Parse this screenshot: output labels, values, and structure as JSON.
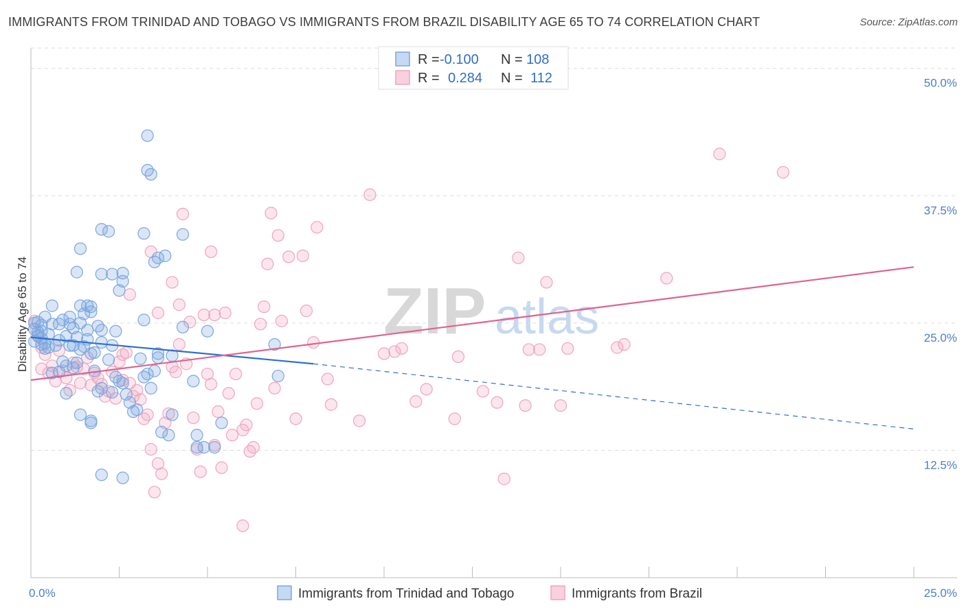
{
  "title": "IMMIGRANTS FROM TRINIDAD AND TOBAGO VS IMMIGRANTS FROM BRAZIL DISABILITY AGE 65 TO 74 CORRELATION CHART",
  "source": "Source: ZipAtlas.com",
  "watermark": {
    "zip": "ZIP",
    "atlas": "atlas"
  },
  "colors": {
    "blue": "#7aa7e0",
    "blue_line": "#2f6fd0",
    "pink": "#f0a4bd",
    "pink_line": "#e0628e"
  },
  "legend": {
    "rows": [
      {
        "r_label": "R =",
        "r_value": "-0.100",
        "n_label": "N =",
        "n_value": "108"
      },
      {
        "r_label": "R =",
        "r_value": "0.284",
        "n_label": "N =",
        "n_value": "112"
      }
    ]
  },
  "bottom_legend": [
    "Immigrants from Trinidad and Tobago",
    "Immigrants from Brazil"
  ],
  "chart_data": {
    "type": "scatter",
    "title": "IMMIGRANTS FROM TRINIDAD AND TOBAGO VS IMMIGRANTS FROM BRAZIL DISABILITY AGE 65 TO 74 CORRELATION CHART",
    "xlabel": "",
    "ylabel": "Disability Age 65 to 74",
    "xlim": [
      0,
      25
    ],
    "ylim": [
      0,
      52
    ],
    "x_tick_labels": [
      "0.0%",
      "25.0%"
    ],
    "y_ticks": [
      12.5,
      25.0,
      37.5,
      50.0
    ],
    "y_tick_labels": [
      "12.5%",
      "25.0%",
      "37.5%",
      "50.0%"
    ],
    "series": [
      {
        "name": "Immigrants from Trinidad and Tobago",
        "color": "#7aa7e0",
        "R": -0.1,
        "N": 108,
        "trend": {
          "x0": 0,
          "y0": 23.6,
          "x1": 8.0,
          "y1": 21.0,
          "dash_to_x": 25,
          "dash_to_y": 14.6
        },
        "points": [
          [
            0.1,
            23.2
          ],
          [
            0.2,
            24.1
          ],
          [
            0.3,
            23.5
          ],
          [
            0.4,
            23.0
          ],
          [
            0.5,
            22.6
          ],
          [
            0.1,
            24.4
          ],
          [
            0.2,
            25.1
          ],
          [
            0.3,
            24.8
          ],
          [
            0.5,
            23.9
          ],
          [
            0.6,
            24.9
          ],
          [
            0.7,
            22.8
          ],
          [
            0.8,
            23.3
          ],
          [
            0.9,
            25.3
          ],
          [
            1.0,
            23.7
          ],
          [
            1.1,
            22.8
          ],
          [
            1.2,
            24.5
          ],
          [
            1.3,
            23.6
          ],
          [
            1.4,
            22.4
          ],
          [
            1.5,
            25.9
          ],
          [
            1.6,
            24.3
          ],
          [
            1.7,
            26.1
          ],
          [
            1.8,
            22.1
          ],
          [
            1.9,
            24.7
          ],
          [
            2.0,
            23.1
          ],
          [
            0.4,
            25.6
          ],
          [
            0.6,
            26.7
          ],
          [
            1.1,
            24.9
          ],
          [
            1.4,
            25.0
          ],
          [
            0.9,
            21.2
          ],
          [
            1.0,
            20.8
          ],
          [
            1.2,
            20.6
          ],
          [
            1.3,
            21.1
          ],
          [
            1.5,
            22.7
          ],
          [
            1.6,
            23.4
          ],
          [
            1.7,
            22.0
          ],
          [
            1.8,
            20.3
          ],
          [
            2.3,
            22.8
          ],
          [
            2.2,
            21.4
          ],
          [
            2.4,
            19.7
          ],
          [
            2.5,
            19.3
          ],
          [
            2.6,
            19.1
          ],
          [
            2.0,
            18.6
          ],
          [
            1.9,
            18.3
          ],
          [
            2.3,
            18.2
          ],
          [
            2.8,
            17.2
          ],
          [
            2.9,
            16.3
          ],
          [
            3.0,
            16.5
          ],
          [
            2.7,
            18.0
          ],
          [
            3.2,
            19.7
          ],
          [
            3.3,
            20.0
          ],
          [
            3.6,
            21.6
          ],
          [
            3.5,
            20.3
          ],
          [
            1.3,
            30.0
          ],
          [
            1.4,
            32.3
          ],
          [
            2.0,
            34.2
          ],
          [
            2.2,
            34.0
          ],
          [
            2.0,
            29.8
          ],
          [
            2.3,
            29.8
          ],
          [
            2.5,
            28.2
          ],
          [
            2.6,
            29.1
          ],
          [
            2.6,
            29.9
          ],
          [
            3.2,
            25.3
          ],
          [
            3.2,
            33.8
          ],
          [
            3.5,
            31.0
          ],
          [
            3.6,
            31.4
          ],
          [
            3.8,
            31.6
          ],
          [
            3.3,
            40.0
          ],
          [
            3.4,
            39.6
          ],
          [
            3.3,
            43.4
          ],
          [
            1.4,
            26.7
          ],
          [
            1.7,
            26.6
          ],
          [
            2.0,
            24.3
          ],
          [
            1.6,
            26.7
          ],
          [
            2.4,
            24.2
          ],
          [
            3.1,
            21.5
          ],
          [
            4.0,
            16.0
          ],
          [
            3.7,
            14.3
          ],
          [
            3.9,
            14.0
          ],
          [
            4.6,
            19.3
          ],
          [
            4.7,
            14.0
          ],
          [
            4.7,
            12.8
          ],
          [
            4.9,
            12.8
          ],
          [
            5.2,
            12.8
          ],
          [
            5.4,
            15.2
          ],
          [
            5.0,
            24.2
          ],
          [
            4.3,
            24.6
          ],
          [
            4.3,
            33.7
          ],
          [
            2.0,
            10.1
          ],
          [
            2.6,
            9.8
          ],
          [
            1.4,
            16.0
          ],
          [
            1.7,
            15.4
          ],
          [
            1.7,
            15.2
          ],
          [
            1.0,
            18.1
          ],
          [
            0.8,
            24.9
          ],
          [
            1.1,
            25.6
          ],
          [
            0.3,
            22.9
          ],
          [
            0.2,
            23.7
          ],
          [
            0.4,
            22.5
          ],
          [
            1.2,
            22.8
          ],
          [
            3.4,
            18.6
          ],
          [
            3.6,
            22.0
          ],
          [
            4.0,
            21.8
          ],
          [
            6.9,
            22.9
          ],
          [
            7.0,
            19.8
          ],
          [
            0.6,
            20.1
          ],
          [
            0.8,
            20.2
          ],
          [
            0.3,
            24.2
          ],
          [
            0.1,
            25.0
          ]
        ]
      },
      {
        "name": "Immigrants from Brazil",
        "color": "#f0a4bd",
        "R": 0.284,
        "N": 112,
        "trend": {
          "x0": 0,
          "y0": 19.4,
          "x1": 25,
          "y1": 30.5
        },
        "points": [
          [
            0.2,
            23.8
          ],
          [
            0.3,
            22.6
          ],
          [
            0.4,
            21.9
          ],
          [
            0.5,
            20.1
          ],
          [
            0.6,
            20.8
          ],
          [
            0.7,
            19.3
          ],
          [
            0.8,
            22.3
          ],
          [
            0.9,
            20.3
          ],
          [
            1.0,
            19.6
          ],
          [
            1.1,
            18.4
          ],
          [
            1.2,
            21.1
          ],
          [
            1.3,
            20.7
          ],
          [
            1.4,
            19.1
          ],
          [
            1.5,
            20.5
          ],
          [
            1.6,
            21.6
          ],
          [
            1.7,
            18.9
          ],
          [
            1.8,
            20.1
          ],
          [
            1.9,
            19.6
          ],
          [
            2.0,
            19.0
          ],
          [
            2.1,
            17.8
          ],
          [
            2.2,
            18.3
          ],
          [
            2.3,
            20.2
          ],
          [
            2.4,
            17.6
          ],
          [
            2.5,
            21.2
          ],
          [
            2.6,
            19.4
          ],
          [
            2.7,
            22.1
          ],
          [
            2.8,
            19.1
          ],
          [
            2.9,
            17.8
          ],
          [
            3.0,
            18.4
          ],
          [
            3.1,
            17.5
          ],
          [
            3.2,
            15.6
          ],
          [
            3.3,
            16.0
          ],
          [
            3.4,
            12.6
          ],
          [
            3.5,
            8.4
          ],
          [
            3.6,
            11.2
          ],
          [
            3.7,
            10.2
          ],
          [
            3.8,
            15.2
          ],
          [
            3.9,
            16.1
          ],
          [
            4.0,
            20.7
          ],
          [
            4.1,
            20.2
          ],
          [
            4.2,
            22.9
          ],
          [
            4.4,
            21.0
          ],
          [
            4.5,
            25.1
          ],
          [
            4.6,
            15.7
          ],
          [
            4.7,
            12.6
          ],
          [
            4.8,
            10.4
          ],
          [
            4.9,
            25.8
          ],
          [
            5.0,
            20.0
          ],
          [
            5.1,
            19.0
          ],
          [
            5.2,
            13.0
          ],
          [
            5.3,
            16.3
          ],
          [
            5.4,
            10.8
          ],
          [
            5.5,
            26.0
          ],
          [
            5.6,
            18.1
          ],
          [
            5.7,
            14.0
          ],
          [
            5.8,
            20.0
          ],
          [
            6.0,
            14.5
          ],
          [
            6.1,
            15.0
          ],
          [
            6.2,
            12.4
          ],
          [
            6.3,
            12.8
          ],
          [
            6.4,
            17.1
          ],
          [
            6.5,
            24.9
          ],
          [
            6.6,
            26.6
          ],
          [
            6.7,
            30.8
          ],
          [
            6.8,
            35.8
          ],
          [
            6.9,
            18.6
          ],
          [
            7.0,
            33.6
          ],
          [
            7.1,
            25.2
          ],
          [
            7.3,
            31.5
          ],
          [
            7.5,
            15.6
          ],
          [
            7.7,
            31.6
          ],
          [
            7.8,
            26.2
          ],
          [
            8.0,
            23.1
          ],
          [
            8.1,
            34.4
          ],
          [
            8.4,
            19.5
          ],
          [
            8.5,
            17.0
          ],
          [
            9.3,
            15.4
          ],
          [
            9.6,
            37.6
          ],
          [
            10.0,
            22.0
          ],
          [
            10.3,
            22.2
          ],
          [
            10.5,
            22.5
          ],
          [
            10.9,
            17.3
          ],
          [
            11.2,
            18.5
          ],
          [
            12.0,
            15.6
          ],
          [
            12.1,
            21.7
          ],
          [
            12.8,
            18.3
          ],
          [
            13.2,
            17.2
          ],
          [
            13.4,
            9.7
          ],
          [
            13.8,
            31.4
          ],
          [
            14.0,
            16.9
          ],
          [
            14.1,
            22.4
          ],
          [
            14.4,
            22.4
          ],
          [
            14.6,
            29.0
          ],
          [
            15.0,
            16.9
          ],
          [
            15.2,
            22.5
          ],
          [
            16.6,
            22.6
          ],
          [
            16.8,
            22.9
          ],
          [
            18.0,
            29.4
          ],
          [
            0.1,
            25.2
          ],
          [
            0.3,
            20.5
          ],
          [
            3.6,
            26.0
          ],
          [
            2.8,
            27.8
          ],
          [
            3.4,
            32.0
          ],
          [
            4.0,
            29.0
          ],
          [
            4.2,
            26.8
          ],
          [
            4.3,
            35.7
          ],
          [
            5.2,
            25.8
          ],
          [
            5.1,
            32.0
          ],
          [
            2.6,
            21.9
          ],
          [
            19.5,
            41.6
          ],
          [
            21.3,
            39.8
          ],
          [
            6.0,
            5.1
          ]
        ]
      }
    ]
  }
}
